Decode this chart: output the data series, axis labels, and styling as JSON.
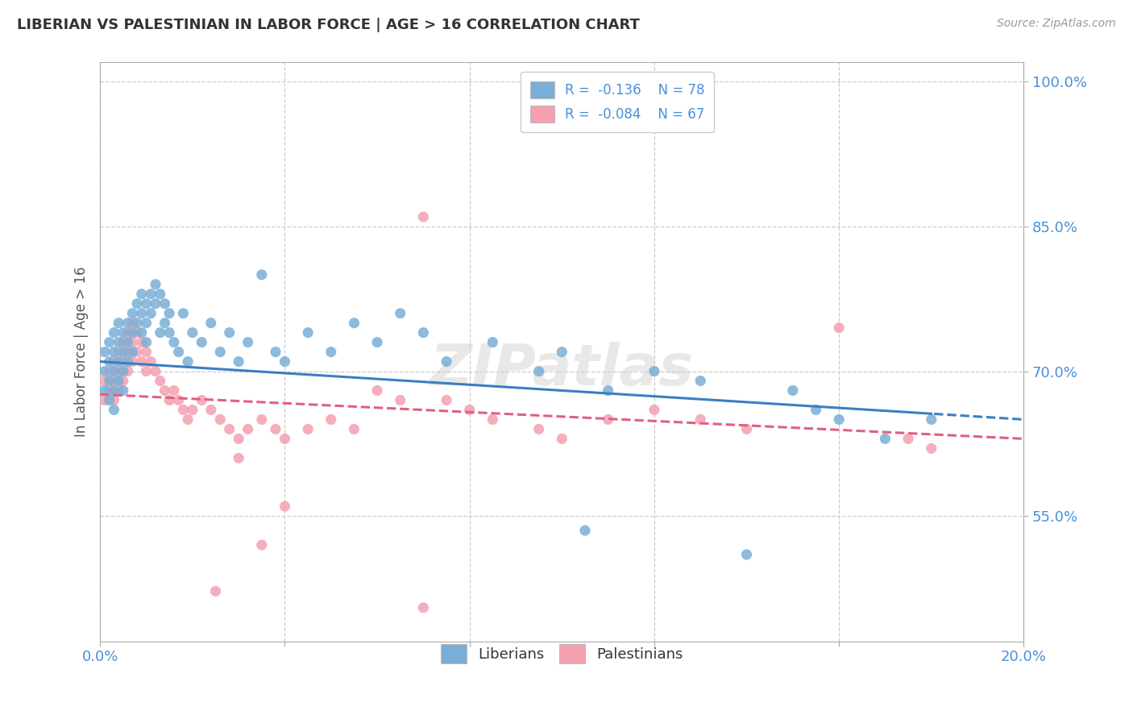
{
  "title": "LIBERIAN VS PALESTINIAN IN LABOR FORCE | AGE > 16 CORRELATION CHART",
  "source_text": "Source: ZipAtlas.com",
  "ylabel": "In Labor Force | Age > 16",
  "xlim": [
    0.0,
    0.2
  ],
  "ylim": [
    0.42,
    1.02
  ],
  "xtick_pos": [
    0.0,
    0.04,
    0.08,
    0.12,
    0.16,
    0.2
  ],
  "xtick_labels": [
    "0.0%",
    "",
    "",
    "",
    "",
    "20.0%"
  ],
  "ytick_pos": [
    0.55,
    0.7,
    0.85,
    1.0
  ],
  "ytick_labels": [
    "55.0%",
    "70.0%",
    "85.0%",
    "100.0%"
  ],
  "blue_color": "#7aaed6",
  "pink_color": "#f4a0b0",
  "blue_line_color": "#3a7fc1",
  "pink_line_color": "#e06080",
  "watermark": "ZIPatlas",
  "lib_R": -0.136,
  "lib_N": 78,
  "pal_R": -0.084,
  "pal_N": 67,
  "liberian_x": [
    0.001,
    0.001,
    0.001,
    0.002,
    0.002,
    0.002,
    0.002,
    0.003,
    0.003,
    0.003,
    0.003,
    0.003,
    0.004,
    0.004,
    0.004,
    0.004,
    0.005,
    0.005,
    0.005,
    0.005,
    0.006,
    0.006,
    0.006,
    0.007,
    0.007,
    0.007,
    0.008,
    0.008,
    0.009,
    0.009,
    0.009,
    0.01,
    0.01,
    0.01,
    0.011,
    0.011,
    0.012,
    0.012,
    0.013,
    0.013,
    0.014,
    0.014,
    0.015,
    0.015,
    0.016,
    0.017,
    0.018,
    0.019,
    0.02,
    0.022,
    0.024,
    0.026,
    0.028,
    0.03,
    0.032,
    0.035,
    0.038,
    0.04,
    0.045,
    0.05,
    0.055,
    0.06,
    0.065,
    0.07,
    0.075,
    0.085,
    0.095,
    0.1,
    0.105,
    0.11,
    0.12,
    0.13,
    0.14,
    0.15,
    0.155,
    0.16,
    0.17,
    0.18
  ],
  "liberian_y": [
    0.7,
    0.68,
    0.72,
    0.71,
    0.69,
    0.73,
    0.67,
    0.72,
    0.7,
    0.68,
    0.74,
    0.66,
    0.73,
    0.71,
    0.69,
    0.75,
    0.74,
    0.72,
    0.7,
    0.68,
    0.75,
    0.73,
    0.71,
    0.76,
    0.74,
    0.72,
    0.77,
    0.75,
    0.78,
    0.76,
    0.74,
    0.77,
    0.75,
    0.73,
    0.78,
    0.76,
    0.79,
    0.77,
    0.78,
    0.74,
    0.77,
    0.75,
    0.76,
    0.74,
    0.73,
    0.72,
    0.76,
    0.71,
    0.74,
    0.73,
    0.75,
    0.72,
    0.74,
    0.71,
    0.73,
    0.8,
    0.72,
    0.71,
    0.74,
    0.72,
    0.75,
    0.73,
    0.76,
    0.74,
    0.71,
    0.73,
    0.7,
    0.72,
    0.535,
    0.68,
    0.7,
    0.69,
    0.51,
    0.68,
    0.66,
    0.65,
    0.63,
    0.65
  ],
  "palestinian_x": [
    0.001,
    0.001,
    0.002,
    0.002,
    0.003,
    0.003,
    0.003,
    0.004,
    0.004,
    0.004,
    0.005,
    0.005,
    0.005,
    0.006,
    0.006,
    0.006,
    0.007,
    0.007,
    0.007,
    0.008,
    0.008,
    0.009,
    0.009,
    0.01,
    0.01,
    0.011,
    0.012,
    0.013,
    0.014,
    0.015,
    0.016,
    0.017,
    0.018,
    0.019,
    0.02,
    0.022,
    0.024,
    0.026,
    0.028,
    0.03,
    0.032,
    0.035,
    0.038,
    0.04,
    0.045,
    0.05,
    0.055,
    0.06,
    0.065,
    0.07,
    0.075,
    0.08,
    0.085,
    0.095,
    0.11,
    0.12,
    0.13,
    0.14,
    0.16,
    0.175,
    0.18,
    0.1,
    0.035,
    0.04,
    0.025,
    0.03,
    0.07
  ],
  "palestinian_y": [
    0.69,
    0.67,
    0.7,
    0.68,
    0.71,
    0.69,
    0.67,
    0.72,
    0.7,
    0.68,
    0.73,
    0.71,
    0.69,
    0.74,
    0.72,
    0.7,
    0.75,
    0.73,
    0.71,
    0.74,
    0.72,
    0.73,
    0.71,
    0.72,
    0.7,
    0.71,
    0.7,
    0.69,
    0.68,
    0.67,
    0.68,
    0.67,
    0.66,
    0.65,
    0.66,
    0.67,
    0.66,
    0.65,
    0.64,
    0.63,
    0.64,
    0.65,
    0.64,
    0.63,
    0.64,
    0.65,
    0.64,
    0.68,
    0.67,
    0.86,
    0.67,
    0.66,
    0.65,
    0.64,
    0.65,
    0.66,
    0.65,
    0.64,
    0.745,
    0.63,
    0.62,
    0.63,
    0.52,
    0.56,
    0.472,
    0.61,
    0.455
  ]
}
